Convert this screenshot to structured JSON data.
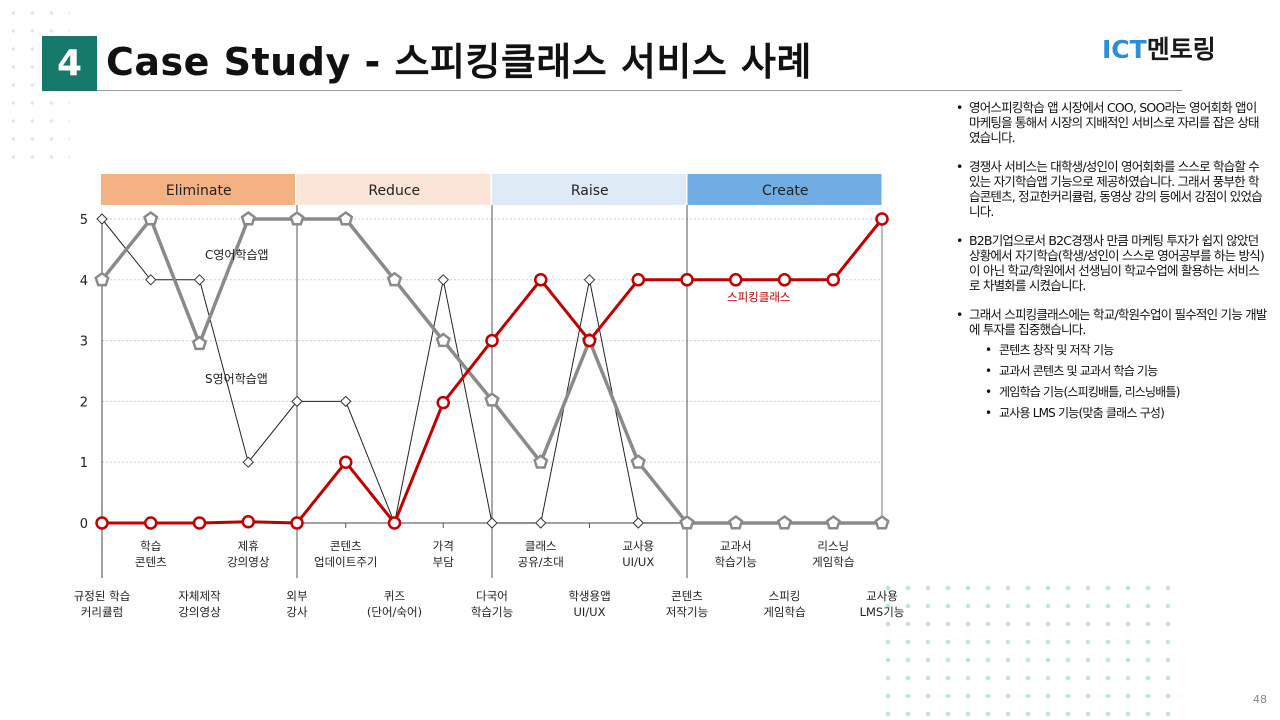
{
  "header": {
    "section_number": "4",
    "title": "Case Study - 스피킹클래스 서비스 사례",
    "logo_ict": "ICT",
    "logo_rest": "멘토링"
  },
  "page_number": "48",
  "notes": [
    {
      "text": "영어스피킹학습 앱 시장에서 COO, SOO라는 영어회화 앱이 마케팅을 통해서 시장의 지배적인 서비스로 자리를 잡은 상태였습니다."
    },
    {
      "text": "경쟁사 서비스는 대학생/성인이 영어회화를 스스로 학습할 수 있는 자기학습앱 기능으로 제공하였습니다. 그래서 풍부한 학습콘텐츠, 정교한커리큘럼, 동영상 강의 등에서 강점이 있었습니다."
    },
    {
      "text": "B2B기업으로서 B2C경쟁사 만큼 마케팅 투자가 쉽지 않았던 상황에서 자기학습(학생/성인이 스스로 영어공부를 하는 방식)이 아닌 학교/학원에서 선생님이 학교수업에 활용하는 서비스로 차별화를 시켰습니다."
    },
    {
      "text": "그래서 스피킹클래스에는 학교/학원수업이 필수적인 기능 개발에 투자를 집중했습니다.",
      "sub": [
        "콘텐츠 창작 및 저작 기능",
        "교과서 콘텐츠 및 교과서 학습 기능",
        "게임학습 기능(스피킹배틀, 리스닝배틀)",
        "교사용 LMS 기능(맞춤 클래스 구성)"
      ]
    }
  ],
  "chart_data": {
    "type": "line",
    "phases": [
      {
        "name": "Eliminate",
        "color": "#f4b183"
      },
      {
        "name": "Reduce",
        "color": "#fbe5d6"
      },
      {
        "name": "Raise",
        "color": "#deebf7"
      },
      {
        "name": "Create",
        "color": "#6fade3"
      }
    ],
    "categories_top": [
      [
        "규정된 학습",
        "커리큘럼"
      ],
      [
        "학습",
        "콘텐츠"
      ],
      [
        "자체제작",
        "강의영상"
      ],
      [
        "제휴",
        "강의영상"
      ],
      [
        "외부",
        "강사"
      ],
      [
        "콘텐츠",
        "업데이트주기"
      ],
      [
        "퀴즈",
        "(단어/숙어)"
      ],
      [
        "가격",
        "부담"
      ],
      [
        "다국어",
        "학습기능"
      ],
      [
        "클래스",
        "공유/초대"
      ],
      [
        "학생용앱",
        "UI/UX"
      ],
      [
        "교사용",
        "UI/UX"
      ],
      [
        "콘텐츠",
        "저작기능"
      ],
      [
        "교과서",
        "학습기능"
      ],
      [
        "스피킹",
        "게임학습"
      ],
      [
        "리스닝",
        "게임학습"
      ],
      [
        "교사용",
        "LMS기능"
      ]
    ],
    "label_rows": [
      1,
      0,
      1,
      0,
      1,
      0,
      1,
      0,
      1,
      0,
      1,
      0,
      1,
      0,
      1,
      0,
      1
    ],
    "yticks": [
      "0",
      "1",
      "2",
      "3",
      "4",
      "5"
    ],
    "ylim": [
      0,
      5
    ],
    "series": [
      {
        "name": "C영어학습앱",
        "color": "#8a8a8a",
        "values": [
          4,
          5,
          2.95,
          5,
          5,
          5,
          4,
          3,
          2.02,
          1,
          3,
          1,
          0,
          0,
          0,
          0,
          0
        ]
      },
      {
        "name": "S영어학습앱",
        "color": "#222222",
        "values": [
          5,
          4,
          4,
          1,
          2,
          2,
          0,
          4,
          0,
          0,
          4,
          0,
          0,
          0,
          0,
          0,
          0
        ]
      },
      {
        "name": "스피킹클래스",
        "color": "#c00000",
        "values": [
          0,
          0,
          0,
          0.02,
          0,
          1,
          0,
          1.98,
          3,
          4,
          3,
          4,
          4,
          4,
          4,
          4,
          5
        ]
      }
    ]
  }
}
